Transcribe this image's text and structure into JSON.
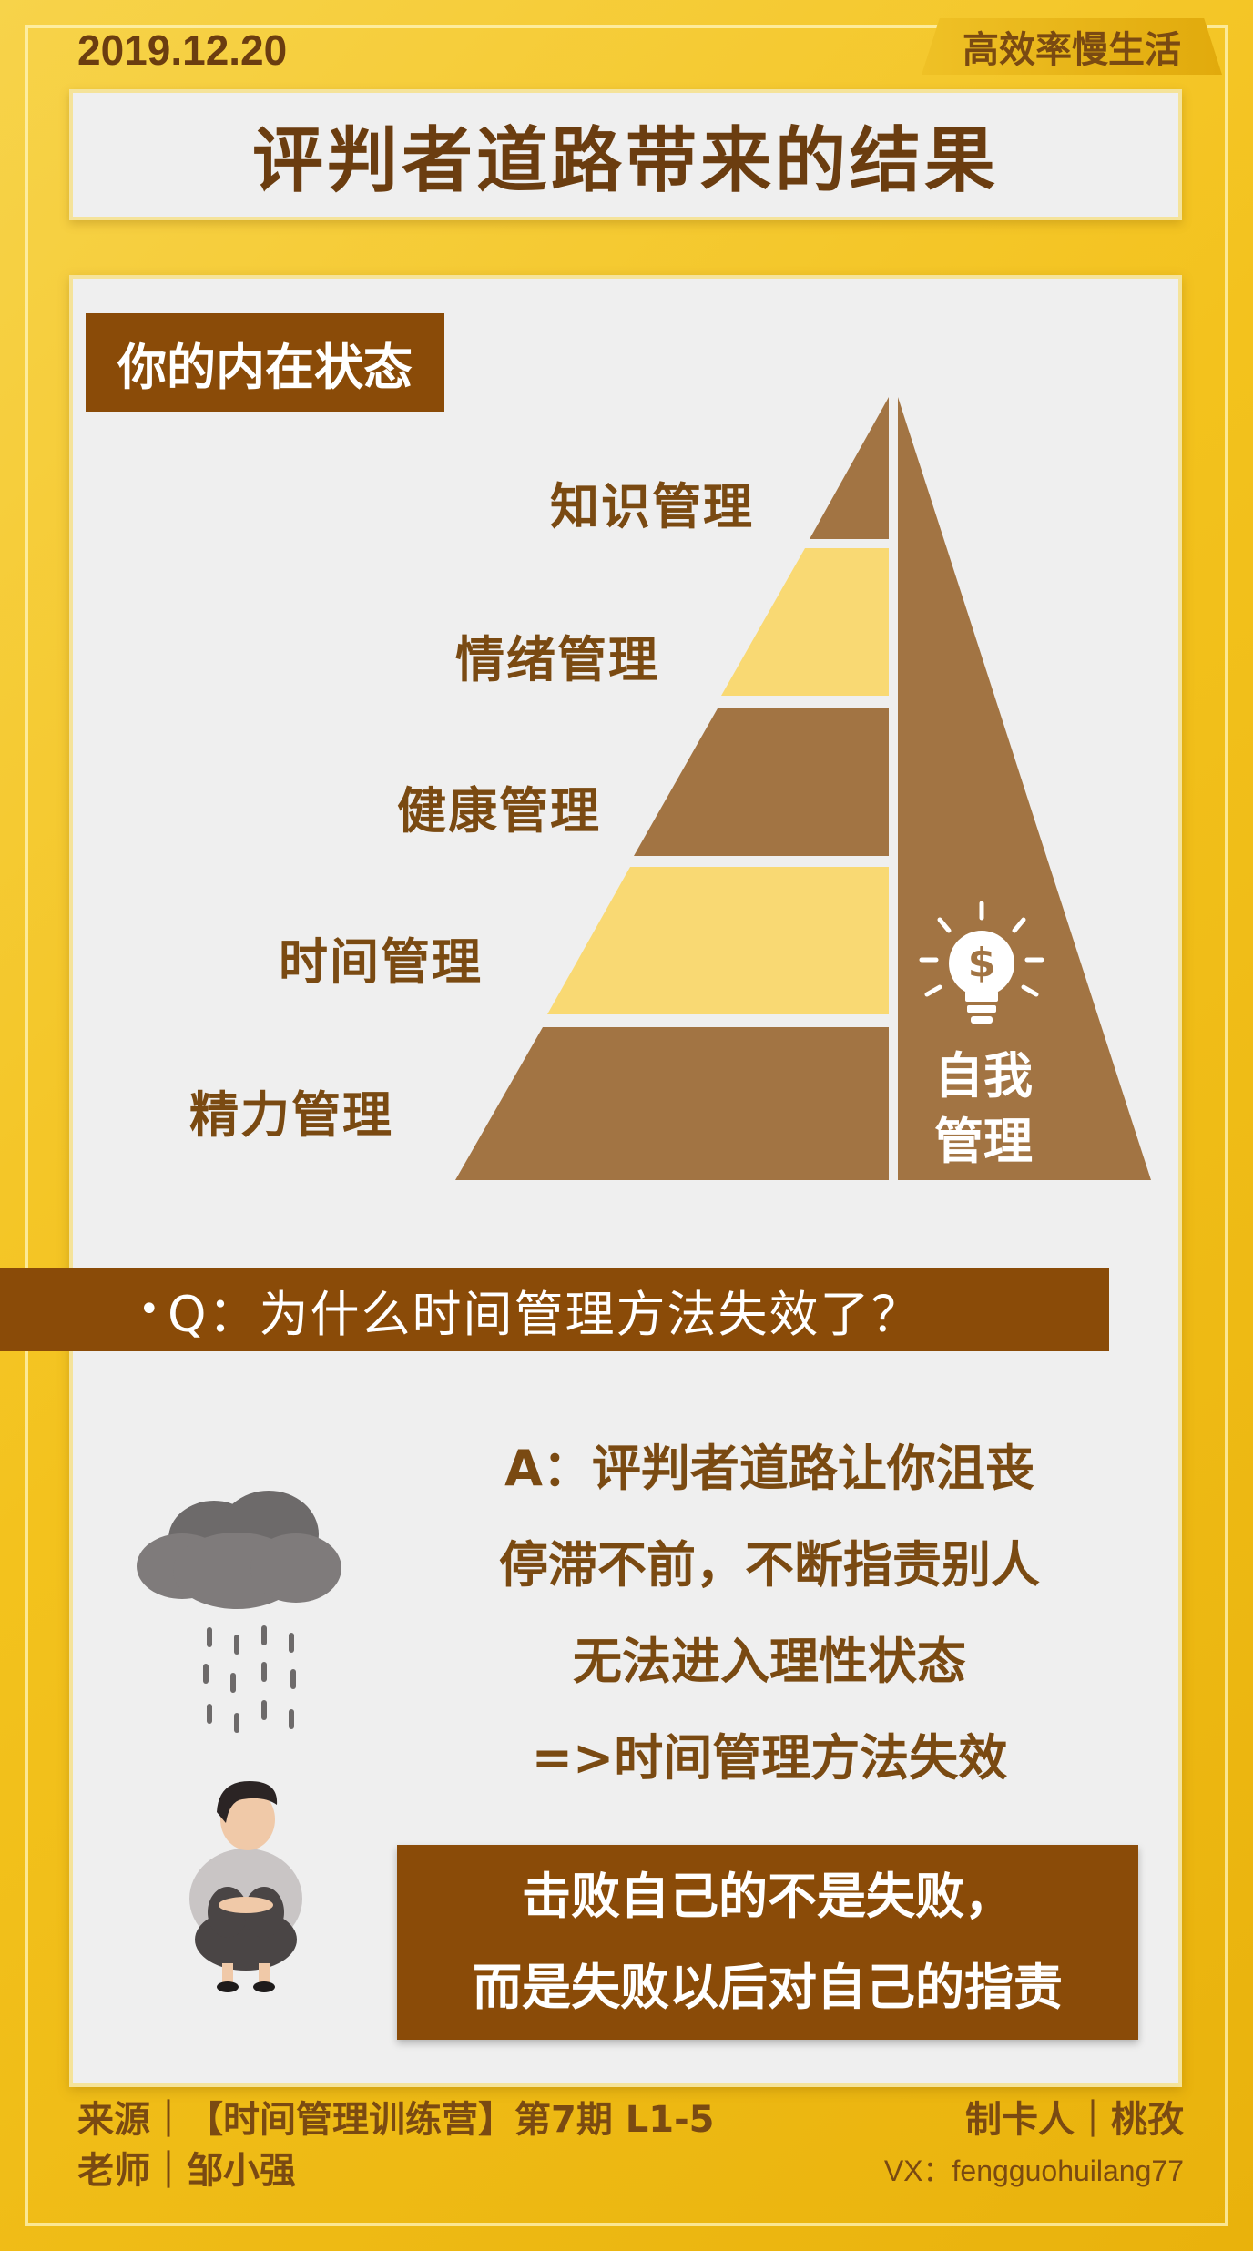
{
  "header": {
    "date": "2019.12.20",
    "tag": "高效率慢生活",
    "title": "评判者道路带来的结果"
  },
  "section": {
    "label": "你的内在状态"
  },
  "pyramid": {
    "levels": [
      "知识管理",
      "情绪管理",
      "健康管理",
      "时间管理",
      "精力管理"
    ],
    "side_label_line1": "自我",
    "side_label_line2": "管理",
    "icon": "lightbulb-dollar-icon"
  },
  "question": {
    "bullet": "•",
    "text": "Q：为什么时间管理方法失效了？"
  },
  "answer": {
    "lines": [
      "A：评判者道路让你沮丧",
      "停滞不前，不断指责别人",
      "无法进入理性状态",
      "=>时间管理方法失效"
    ]
  },
  "quote": {
    "line1": "击败自己的不是失败，",
    "line2": "而是失败以后对自己的指责"
  },
  "illustration": {
    "icon": "sad-person-rain-cloud-icon"
  },
  "footer": {
    "source": "来源｜【时间管理训练营】第7期 L1-5",
    "teacher": "老师｜邹小强",
    "maker": "制卡人｜桃孜",
    "vx": "VX：fengguohuilang77"
  },
  "colors": {
    "brown": "#8a4b08",
    "pyramid_dark": "#a27443",
    "pyramid_light": "#f9d973",
    "text_brown": "#7a4a12",
    "background_yellow": "#f3c21d"
  }
}
